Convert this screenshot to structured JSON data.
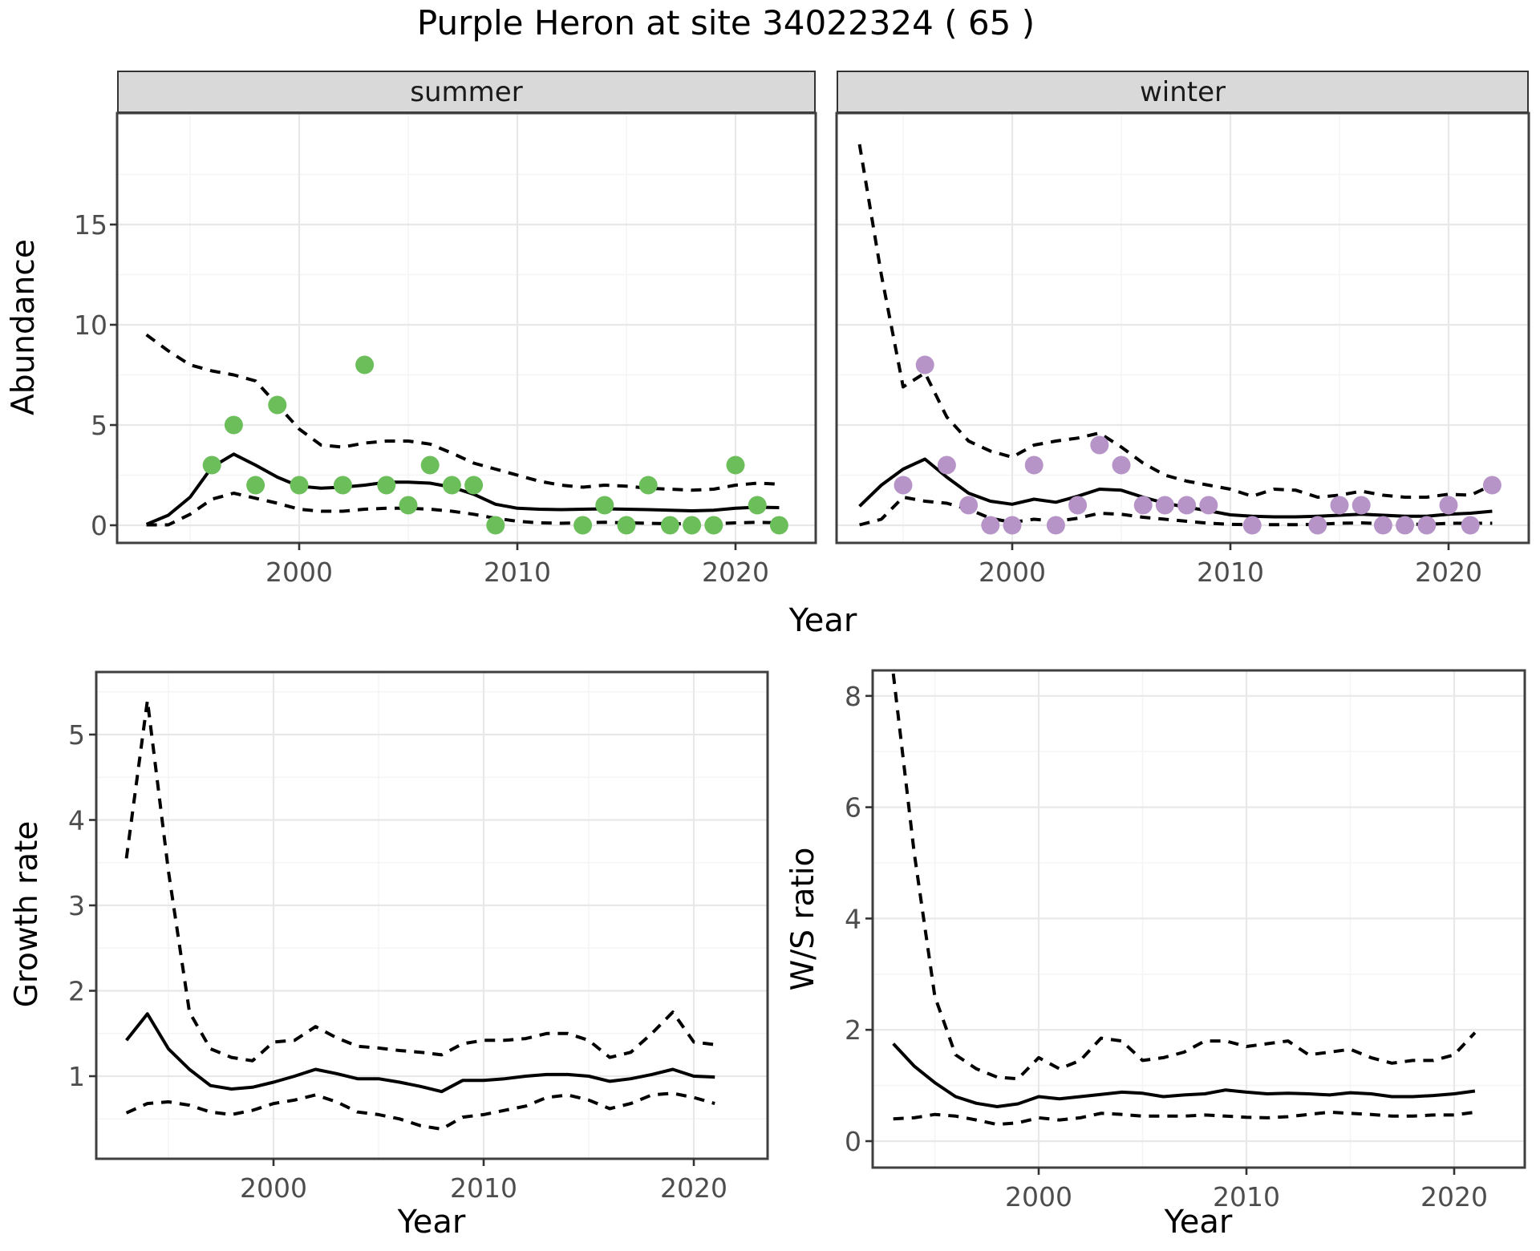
{
  "title": "Purple Heron at site 34022324 ( 65 )",
  "facets": {
    "summer": "summer",
    "winter": "winter"
  },
  "axis_titles": {
    "abundance": "Abundance",
    "year": "Year",
    "growth_rate": "Growth rate",
    "ws_ratio": "W/S ratio"
  },
  "colors": {
    "summer_points": "#6CBE5B",
    "winter_points": "#B794C7",
    "line": "#000000",
    "strip_background": "#D9D9D9",
    "panel_border": "#3F3F3F",
    "grid_major": "#E8E8E8",
    "grid_minor": "#F5F5F5",
    "tick_text": "#4D4D4D"
  },
  "chart_data": [
    {
      "id": "abundance_summer",
      "type": "line",
      "facet_label": "summer",
      "x_label": "Year",
      "y_label": "Abundance",
      "x_ticks": [
        2000,
        2010,
        2020
      ],
      "x_minor_ticks": [
        1995,
        2005,
        2015
      ],
      "y_ticks": [
        0,
        5,
        10,
        15
      ],
      "y_minor_ticks": [
        2.5,
        7.5,
        12.5,
        17.5
      ],
      "xlim": [
        1991.6,
        2023.7
      ],
      "ylim": [
        -0.9,
        20.6
      ],
      "x": [
        1993,
        1994,
        1995,
        1996,
        1997,
        1998,
        1999,
        2000,
        2001,
        2002,
        2003,
        2004,
        2005,
        2006,
        2007,
        2008,
        2009,
        2010,
        2011,
        2012,
        2013,
        2014,
        2015,
        2016,
        2017,
        2018,
        2019,
        2020,
        2021,
        2022
      ],
      "series": [
        {
          "name": "lower_ci",
          "style": "dashed",
          "color": "#000000",
          "values": [
            0.02,
            0.02,
            0.55,
            1.3,
            1.6,
            1.35,
            1.1,
            0.8,
            0.7,
            0.7,
            0.8,
            0.85,
            0.85,
            0.8,
            0.7,
            0.55,
            0.35,
            0.2,
            0.12,
            0.1,
            0.12,
            0.15,
            0.12,
            0.1,
            0.08,
            0.07,
            0.08,
            0.12,
            0.15,
            0.12
          ]
        },
        {
          "name": "upper_ci",
          "style": "dashed",
          "color": "#000000",
          "values": [
            9.5,
            8.7,
            8.0,
            7.7,
            7.5,
            7.2,
            6.0,
            4.8,
            4.0,
            3.9,
            4.1,
            4.2,
            4.2,
            4.05,
            3.6,
            3.1,
            2.8,
            2.5,
            2.2,
            2.0,
            1.9,
            2.0,
            1.95,
            1.85,
            1.8,
            1.75,
            1.8,
            2.0,
            2.1,
            2.05
          ]
        },
        {
          "name": "mean",
          "style": "solid",
          "color": "#000000",
          "values": [
            0.05,
            0.5,
            1.4,
            2.9,
            3.55,
            3.0,
            2.4,
            1.95,
            1.85,
            1.9,
            2.0,
            2.15,
            2.15,
            2.1,
            1.9,
            1.55,
            1.05,
            0.85,
            0.8,
            0.78,
            0.8,
            0.82,
            0.8,
            0.78,
            0.75,
            0.72,
            0.75,
            0.85,
            0.9,
            0.88
          ]
        },
        {
          "name": "observed_counts",
          "style": "points",
          "color": "#6CBE5B",
          "points": [
            [
              1996,
              3
            ],
            [
              1997,
              5
            ],
            [
              1998,
              2
            ],
            [
              1999,
              6
            ],
            [
              2000,
              2
            ],
            [
              2002,
              2
            ],
            [
              2003,
              8
            ],
            [
              2004,
              2
            ],
            [
              2005,
              1
            ],
            [
              2006,
              3
            ],
            [
              2007,
              2
            ],
            [
              2008,
              2
            ],
            [
              2009,
              0
            ],
            [
              2013,
              0
            ],
            [
              2014,
              1
            ],
            [
              2015,
              0
            ],
            [
              2016,
              2
            ],
            [
              2017,
              0
            ],
            [
              2018,
              0
            ],
            [
              2019,
              0
            ],
            [
              2020,
              3
            ],
            [
              2021,
              1
            ],
            [
              2022,
              0
            ]
          ]
        }
      ]
    },
    {
      "id": "abundance_winter",
      "type": "line",
      "facet_label": "winter",
      "x_label": "Year",
      "y_label": "Abundance",
      "x_ticks": [
        2000,
        2010,
        2020
      ],
      "x_minor_ticks": [
        1995,
        2005,
        2015
      ],
      "y_ticks": [
        0,
        5,
        10,
        15
      ],
      "y_minor_ticks": [
        2.5,
        7.5,
        12.5,
        17.5
      ],
      "xlim": [
        1991.9,
        2023.6
      ],
      "ylim": [
        -0.9,
        20.6
      ],
      "x": [
        1993,
        1994,
        1995,
        1996,
        1997,
        1998,
        1999,
        2000,
        2001,
        2002,
        2003,
        2004,
        2005,
        2006,
        2007,
        2008,
        2009,
        2010,
        2011,
        2012,
        2013,
        2014,
        2015,
        2016,
        2017,
        2018,
        2019,
        2020,
        2021,
        2022
      ],
      "series": [
        {
          "name": "lower_ci",
          "style": "dashed",
          "color": "#000000",
          "values": [
            0.02,
            0.3,
            1.4,
            1.2,
            1.1,
            0.8,
            0.35,
            0.15,
            0.3,
            0.2,
            0.35,
            0.6,
            0.55,
            0.4,
            0.3,
            0.2,
            0.1,
            0.05,
            0.03,
            0.03,
            0.03,
            0.05,
            0.1,
            0.12,
            0.08,
            0.05,
            0.05,
            0.1,
            0.1,
            0.1
          ]
        },
        {
          "name": "upper_ci",
          "style": "dashed",
          "color": "#000000",
          "values": [
            19.0,
            12.5,
            6.9,
            7.6,
            5.4,
            4.2,
            3.7,
            3.4,
            4.0,
            4.2,
            4.35,
            4.6,
            3.9,
            3.1,
            2.5,
            2.2,
            2.0,
            1.8,
            1.45,
            1.8,
            1.75,
            1.4,
            1.5,
            1.7,
            1.5,
            1.4,
            1.4,
            1.55,
            1.5,
            2.0
          ]
        },
        {
          "name": "mean",
          "style": "solid",
          "color": "#000000",
          "values": [
            0.95,
            2.0,
            2.8,
            3.3,
            2.4,
            1.6,
            1.2,
            1.05,
            1.3,
            1.15,
            1.45,
            1.8,
            1.75,
            1.4,
            1.1,
            0.9,
            0.72,
            0.52,
            0.45,
            0.42,
            0.42,
            0.45,
            0.5,
            0.55,
            0.5,
            0.45,
            0.45,
            0.55,
            0.6,
            0.7
          ]
        },
        {
          "name": "observed_counts",
          "style": "points",
          "color": "#B794C7",
          "points": [
            [
              1995,
              2
            ],
            [
              1996,
              8
            ],
            [
              1997,
              3
            ],
            [
              1998,
              1
            ],
            [
              1999,
              0
            ],
            [
              2000,
              0
            ],
            [
              2001,
              3
            ],
            [
              2002,
              0
            ],
            [
              2003,
              1
            ],
            [
              2004,
              4
            ],
            [
              2005,
              3
            ],
            [
              2006,
              1
            ],
            [
              2007,
              1
            ],
            [
              2008,
              1
            ],
            [
              2009,
              1
            ],
            [
              2011,
              0
            ],
            [
              2014,
              0
            ],
            [
              2015,
              1
            ],
            [
              2016,
              1
            ],
            [
              2017,
              0
            ],
            [
              2018,
              0
            ],
            [
              2019,
              0
            ],
            [
              2020,
              1
            ],
            [
              2021,
              0
            ],
            [
              2022,
              2
            ]
          ]
        }
      ]
    },
    {
      "id": "growth_rate",
      "type": "line",
      "x_label": "Year",
      "y_label": "Growth rate",
      "x_ticks": [
        2000,
        2010,
        2020
      ],
      "x_minor_ticks": [
        1995,
        2005,
        2015
      ],
      "y_ticks": [
        1,
        2,
        3,
        4,
        5
      ],
      "y_minor_ticks": [
        0.5,
        1.5,
        2.5,
        3.5,
        4.5,
        5.5
      ],
      "xlim": [
        1991.6,
        2023.5
      ],
      "ylim": [
        0.03,
        5.73
      ],
      "x": [
        1993,
        1994,
        1995,
        1996,
        1997,
        1998,
        1999,
        2000,
        2001,
        2002,
        2003,
        2004,
        2005,
        2006,
        2007,
        2008,
        2009,
        2010,
        2011,
        2012,
        2013,
        2014,
        2015,
        2016,
        2017,
        2018,
        2019,
        2020,
        2021
      ],
      "series": [
        {
          "name": "lower_ci",
          "style": "dashed",
          "color": "#000000",
          "values": [
            0.57,
            0.68,
            0.7,
            0.66,
            0.58,
            0.55,
            0.6,
            0.68,
            0.72,
            0.78,
            0.7,
            0.58,
            0.55,
            0.5,
            0.42,
            0.38,
            0.52,
            0.55,
            0.6,
            0.65,
            0.75,
            0.78,
            0.72,
            0.62,
            0.68,
            0.78,
            0.8,
            0.75,
            0.68
          ]
        },
        {
          "name": "upper_ci",
          "style": "dashed",
          "color": "#000000",
          "values": [
            3.55,
            5.4,
            3.4,
            1.75,
            1.32,
            1.22,
            1.18,
            1.4,
            1.42,
            1.58,
            1.45,
            1.35,
            1.33,
            1.3,
            1.28,
            1.25,
            1.38,
            1.42,
            1.42,
            1.44,
            1.5,
            1.5,
            1.42,
            1.22,
            1.28,
            1.5,
            1.75,
            1.4,
            1.37
          ]
        },
        {
          "name": "mean",
          "style": "solid",
          "color": "#000000",
          "values": [
            1.42,
            1.73,
            1.32,
            1.08,
            0.89,
            0.85,
            0.87,
            0.93,
            1.0,
            1.08,
            1.03,
            0.97,
            0.97,
            0.93,
            0.88,
            0.82,
            0.95,
            0.95,
            0.97,
            1.0,
            1.02,
            1.02,
            1.0,
            0.94,
            0.97,
            1.02,
            1.08,
            1.0,
            0.99
          ]
        }
      ]
    },
    {
      "id": "ws_ratio",
      "type": "line",
      "x_label": "Year",
      "y_label": "W/S ratio",
      "x_ticks": [
        2000,
        2010,
        2020
      ],
      "x_minor_ticks": [
        1995,
        2005,
        2015
      ],
      "y_ticks": [
        0,
        2,
        4,
        6,
        8
      ],
      "y_minor_ticks": [
        1,
        3,
        5,
        7
      ],
      "xlim": [
        1992.0,
        2023.4
      ],
      "ylim": [
        -0.48,
        8.46
      ],
      "x": [
        1993,
        1994,
        1995,
        1996,
        1997,
        1998,
        1999,
        2000,
        2001,
        2002,
        2003,
        2004,
        2005,
        2006,
        2007,
        2008,
        2009,
        2010,
        2011,
        2012,
        2013,
        2014,
        2015,
        2016,
        2017,
        2018,
        2019,
        2020,
        2021
      ],
      "series": [
        {
          "name": "lower_ci",
          "style": "dashed",
          "color": "#000000",
          "values": [
            0.4,
            0.42,
            0.48,
            0.45,
            0.38,
            0.3,
            0.33,
            0.42,
            0.38,
            0.42,
            0.5,
            0.48,
            0.45,
            0.45,
            0.45,
            0.47,
            0.45,
            0.43,
            0.42,
            0.44,
            0.48,
            0.52,
            0.5,
            0.48,
            0.45,
            0.45,
            0.47,
            0.47,
            0.52
          ]
        },
        {
          "name": "upper_ci",
          "style": "dashed",
          "color": "#000000",
          "values": [
            8.4,
            5.2,
            2.6,
            1.55,
            1.3,
            1.15,
            1.12,
            1.5,
            1.3,
            1.45,
            1.85,
            1.8,
            1.45,
            1.5,
            1.6,
            1.8,
            1.8,
            1.7,
            1.75,
            1.8,
            1.55,
            1.6,
            1.65,
            1.5,
            1.4,
            1.45,
            1.45,
            1.55,
            1.95
          ]
        },
        {
          "name": "mean",
          "style": "solid",
          "color": "#000000",
          "values": [
            1.75,
            1.35,
            1.05,
            0.8,
            0.68,
            0.62,
            0.67,
            0.8,
            0.76,
            0.8,
            0.84,
            0.88,
            0.86,
            0.8,
            0.83,
            0.85,
            0.92,
            0.88,
            0.85,
            0.86,
            0.85,
            0.83,
            0.87,
            0.85,
            0.8,
            0.8,
            0.82,
            0.85,
            0.9
          ]
        }
      ]
    }
  ]
}
